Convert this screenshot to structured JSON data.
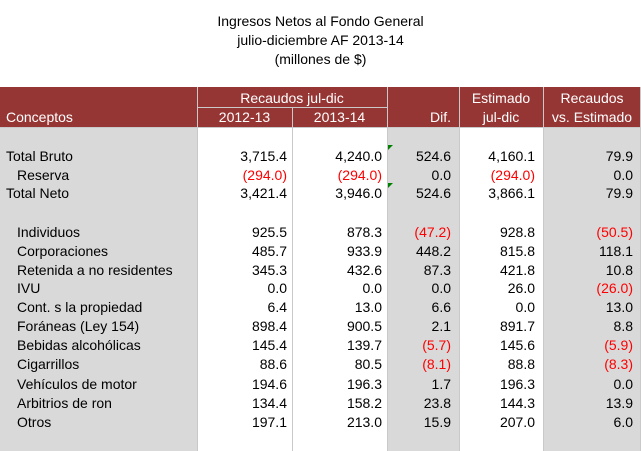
{
  "title": {
    "line1": "Ingresos Netos al Fondo General",
    "line2": "julio-diciembre AF 2013-14",
    "line3": "(millones de $)"
  },
  "header": {
    "conceptos": "Conceptos",
    "recaudos": "Recaudos jul-dic",
    "y1": "2012-13",
    "y2": "2013-14",
    "dif": "Dif.",
    "estimado": "Estimado",
    "estimado_sub": "jul-dic",
    "recaudos_vs": "Recaudos",
    "recaudos_vs_sub": "vs. Estimado"
  },
  "rows": [
    {
      "concepto": "Total Bruto",
      "y1": "3,715.4",
      "y2": "4,240.0",
      "dif": "524.6",
      "est": "4,160.1",
      "vs": "79.9"
    },
    {
      "concepto": "Reserva",
      "y1": "(294.0)",
      "y2": "(294.0)",
      "dif": "0.0",
      "est": "(294.0)",
      "vs": "0.0"
    },
    {
      "concepto": "Total Neto",
      "y1": "3,421.4",
      "y2": "3,946.0",
      "dif": "524.6",
      "est": "3,866.1",
      "vs": "79.9"
    },
    {
      "concepto": "Individuos",
      "y1": "925.5",
      "y2": "878.3",
      "dif": "(47.2)",
      "est": "928.8",
      "vs": "(50.5)"
    },
    {
      "concepto": "Corporaciones",
      "y1": "485.7",
      "y2": "933.9",
      "dif": "448.2",
      "est": "815.8",
      "vs": "118.1"
    },
    {
      "concepto": "Retenida a no residentes",
      "y1": "345.3",
      "y2": "432.6",
      "dif": "87.3",
      "est": "421.8",
      "vs": "10.8"
    },
    {
      "concepto": "IVU",
      "y1": "0.0",
      "y2": "0.0",
      "dif": "0.0",
      "est": "26.0",
      "vs": "(26.0)"
    },
    {
      "concepto": "Cont. s la propiedad",
      "y1": "6.4",
      "y2": "13.0",
      "dif": "6.6",
      "est": "0.0",
      "vs": "13.0"
    },
    {
      "concepto": "Foráneas (Ley 154)",
      "y1": "898.4",
      "y2": "900.5",
      "dif": "2.1",
      "est": "891.7",
      "vs": "8.8"
    },
    {
      "concepto": "Bebidas alcohólicas",
      "y1": "145.4",
      "y2": "139.7",
      "dif": "(5.7)",
      "est": "145.6",
      "vs": "(5.9)"
    },
    {
      "concepto": "Cigarrillos",
      "y1": "88.6",
      "y2": "80.5",
      "dif": "(8.1)",
      "est": "88.8",
      "vs": "(8.3)"
    },
    {
      "concepto": "Vehículos de motor",
      "y1": "194.6",
      "y2": "196.3",
      "dif": "1.7",
      "est": "196.3",
      "vs": "0.0"
    },
    {
      "concepto": "Arbitrios de ron",
      "y1": "134.4",
      "y2": "158.2",
      "dif": "23.8",
      "est": "144.3",
      "vs": "13.9"
    },
    {
      "concepto": "Otros",
      "y1": "197.1",
      "y2": "213.0",
      "dif": "15.9",
      "est": "207.0",
      "vs": "6.0"
    }
  ],
  "colors": {
    "header_bg": "#963634",
    "negative": "#ff0000",
    "shaded_col": "#d9d9d9"
  }
}
